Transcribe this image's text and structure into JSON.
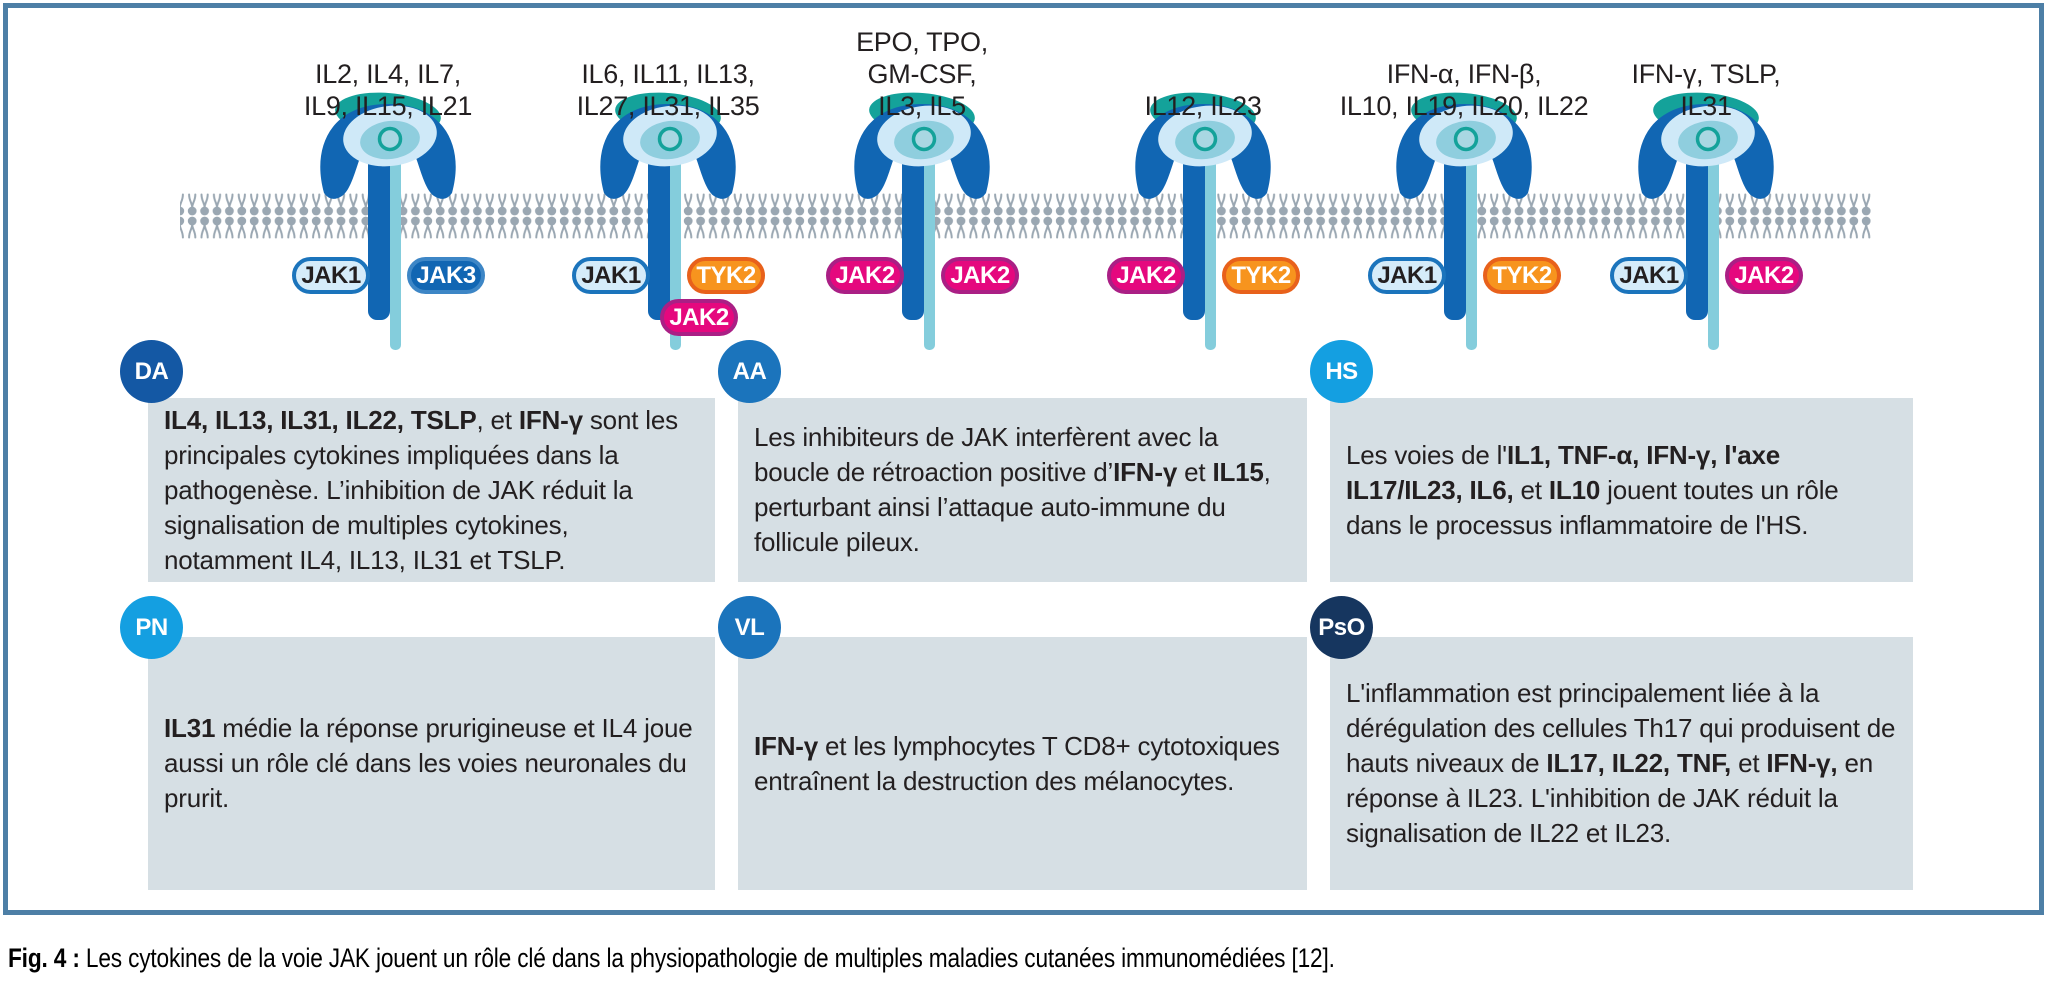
{
  "caption": {
    "label": "Fig. 4 : ",
    "text": "Les cytokines de la voie JAK jouent un rôle clé dans la physiopathologie de multiples maladies cutanées immunomédiées [12]."
  },
  "colors": {
    "frame_border": "#4d7fa6",
    "box_bg": "#d6dfe4",
    "membrane": "#9aa7b2",
    "receptor_blue": "#1166b3",
    "receptor_teal": "#14a29a",
    "receptor_pale": "#cfe9f8",
    "receptor_mid": "#8fcede",
    "receptor_core": "#a9d7e2",
    "stem_cyan": "#84cddc",
    "jak1_fill": "#d5ecfa",
    "jak1_border": "#1b74bc",
    "jak3_fill": "#1166b3",
    "jak3_border": "#3d86c6",
    "jak2_fill": "#e5087e",
    "jak2_border": "#aa1f85",
    "tyk2_fill": "#f7941e",
    "tyk2_border": "#e8611b",
    "badge_dark": "#1458a4",
    "badge_medium": "#1b74bc",
    "badge_sky": "#149fe1",
    "badge_navy": "#16365f"
  },
  "receptors": [
    {
      "cytokines": [
        "IL2, IL4, IL7,",
        "IL9, IL15, IL21"
      ],
      "jaks": [
        {
          "label": "JAK1",
          "style": "jak1",
          "pos": "left"
        },
        {
          "label": "JAK3",
          "style": "blue",
          "pos": "right"
        }
      ]
    },
    {
      "cytokines": [
        "IL6, IL11, IL13,",
        "IL27, IL31, IL35"
      ],
      "jaks": [
        {
          "label": "JAK1",
          "style": "jak1",
          "pos": "left"
        },
        {
          "label": "TYK2",
          "style": "orange",
          "pos": "right"
        },
        {
          "label": "JAK2",
          "style": "magenta",
          "pos": "below"
        }
      ]
    },
    {
      "cytokines": [
        "EPO, TPO,",
        "GM-CSF,",
        "IL3, IL5"
      ],
      "jaks": [
        {
          "label": "JAK2",
          "style": "magenta",
          "pos": "left"
        },
        {
          "label": "JAK2",
          "style": "magenta",
          "pos": "right"
        }
      ]
    },
    {
      "cytokines": [
        "IL12, IL23"
      ],
      "jaks": [
        {
          "label": "JAK2",
          "style": "magenta",
          "pos": "left"
        },
        {
          "label": "TYK2",
          "style": "orange",
          "pos": "right"
        }
      ]
    },
    {
      "cytokines": [
        "IFN-α, IFN-β,",
        "IL10, IL19, IL20, IL22"
      ],
      "jaks": [
        {
          "label": "JAK1",
          "style": "jak1",
          "pos": "left"
        },
        {
          "label": "TYK2",
          "style": "orange",
          "pos": "right"
        }
      ]
    },
    {
      "cytokines": [
        "IFN-γ, TSLP,",
        "IL31"
      ],
      "jaks": [
        {
          "label": "JAK1",
          "style": "jak1",
          "pos": "left"
        },
        {
          "label": "JAK2",
          "style": "magenta",
          "pos": "right"
        }
      ]
    }
  ],
  "diseases": [
    {
      "abbr": "DA",
      "badge": "badge_dark",
      "text": [
        {
          "b": true,
          "t": "IL4, IL13, IL31, IL22, TSLP"
        },
        {
          "t": ", et "
        },
        {
          "b": true,
          "t": "IFN-γ"
        },
        {
          "t": " sont les principales cytokines impliquées dans la pathogenèse. L’inhibition de JAK réduit la signalisation de multiples cytokines, notamment IL4, IL13, IL31 et TSLP."
        }
      ]
    },
    {
      "abbr": "AA",
      "badge": "badge_medium",
      "text": [
        {
          "t": "Les inhibiteurs de JAK interfèrent avec la boucle de rétroaction positive d’"
        },
        {
          "b": true,
          "t": "IFN-γ"
        },
        {
          "t": " et "
        },
        {
          "b": true,
          "t": "IL15"
        },
        {
          "t": ", perturbant ainsi l’attaque auto-immune du follicule pileux."
        }
      ]
    },
    {
      "abbr": "HS",
      "badge": "badge_sky",
      "text": [
        {
          "t": "Les voies de l'"
        },
        {
          "b": true,
          "t": "IL1, TNF-α, IFN-γ, l'axe IL17/IL23, IL6,"
        },
        {
          "t": " et "
        },
        {
          "b": true,
          "t": "IL10"
        },
        {
          "t": " jouent toutes un rôle dans le processus inflammatoire de l'HS."
        }
      ]
    },
    {
      "abbr": "PN",
      "badge": "badge_sky",
      "text": [
        {
          "b": true,
          "t": "IL31"
        },
        {
          "t": " médie la réponse prurigineuse et IL4 joue aussi un rôle clé dans les voies neuronales du prurit."
        }
      ]
    },
    {
      "abbr": "VL",
      "badge": "badge_medium",
      "text": [
        {
          "b": true,
          "t": "IFN-γ"
        },
        {
          "t": " et les lymphocytes T CD8+ cytotoxiques entraînent la destruction des mélanocytes."
        }
      ]
    },
    {
      "abbr": "PsO",
      "badge": "badge_navy",
      "text": [
        {
          "t": "L'inflammation est principalement liée à la dérégulation des cellules Th17 qui produisent de hauts niveaux de "
        },
        {
          "b": true,
          "t": "IL17, IL22, TNF,"
        },
        {
          "t": " et "
        },
        {
          "b": true,
          "t": "IFN-γ,"
        },
        {
          "t": " en réponse à IL23. L'inhibition de JAK réduit la signalisation de IL22 et IL23."
        }
      ]
    }
  ]
}
